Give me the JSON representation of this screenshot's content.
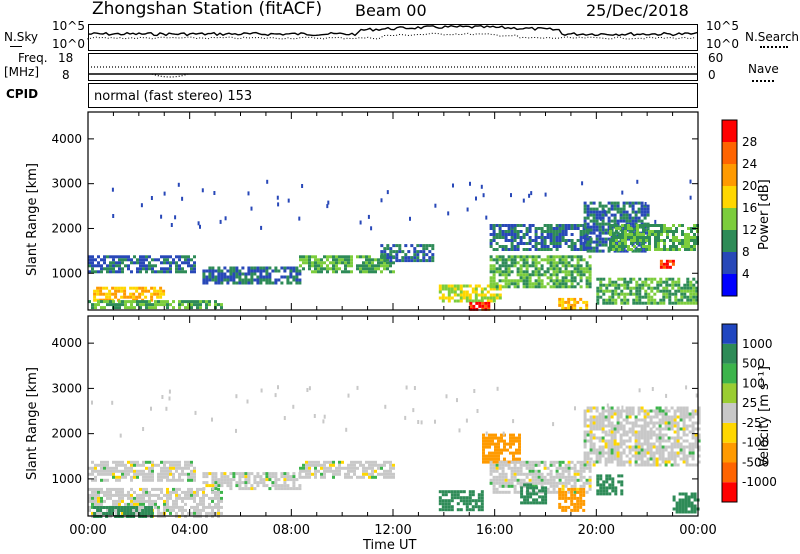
{
  "header": {
    "station": "Zhongshan Station (fitACF)",
    "beam": "Beam 00",
    "date": "25/Dec/2018"
  },
  "top_panels": {
    "nsky_label": "N.Sky",
    "nsky_ticks": [
      "10^5",
      "10^0"
    ],
    "nsearch_label": "N.Search",
    "freq_label_1": "Freq.",
    "freq_label_2": "[MHz]",
    "freq_ticks": [
      "18",
      "8"
    ],
    "nave_ticks": [
      "60",
      "0"
    ],
    "nave_label": "Nave",
    "cpid_label": "CPID",
    "cpid_text": "normal (fast stereo) 153"
  },
  "chart_data": [
    {
      "type": "heatmap",
      "title": "",
      "xlabel": "Time UT",
      "ylabel": "Slant Range [km]",
      "xticks": [
        "00:00",
        "04:00",
        "08:00",
        "12:00",
        "16:00",
        "20:00",
        "00:00"
      ],
      "xlim_hours": [
        0,
        24
      ],
      "yticks": [
        1000,
        2000,
        3000,
        4000
      ],
      "ylim": [
        180,
        4600
      ],
      "colorbar_label": "Power [dB]",
      "colorbar_ticks": [
        4,
        8,
        12,
        16,
        20,
        24,
        28
      ],
      "colorbar_colors": [
        "#0000ff",
        "#2848b8",
        "#2e8b57",
        "#7ccd3c",
        "#ffd700",
        "#ff9a00",
        "#ff6400",
        "#ff0000"
      ],
      "regions": [
        {
          "t0": 0.0,
          "t1": 4.2,
          "r0": 1000,
          "r1": 1400,
          "level": 8
        },
        {
          "t0": 0.2,
          "t1": 3.0,
          "r0": 380,
          "r1": 700,
          "level": 20
        },
        {
          "t0": 0.0,
          "t1": 5.3,
          "r0": 200,
          "r1": 400,
          "level": 12
        },
        {
          "t0": 4.5,
          "t1": 8.3,
          "r0": 780,
          "r1": 1150,
          "level": 8
        },
        {
          "t0": 8.3,
          "t1": 12.0,
          "r0": 1050,
          "r1": 1400,
          "level": 12
        },
        {
          "t0": 11.5,
          "t1": 13.6,
          "r0": 1250,
          "r1": 1650,
          "level": 8
        },
        {
          "t0": 13.8,
          "t1": 16.2,
          "r0": 350,
          "r1": 750,
          "level": 16
        },
        {
          "t0": 15.0,
          "t1": 15.8,
          "r0": 220,
          "r1": 360,
          "level": 28
        },
        {
          "t0": 15.8,
          "t1": 19.7,
          "r0": 700,
          "r1": 1400,
          "level": 12
        },
        {
          "t0": 15.8,
          "t1": 19.7,
          "r0": 1500,
          "r1": 2100,
          "level": 8
        },
        {
          "t0": 18.5,
          "t1": 19.6,
          "r0": 220,
          "r1": 450,
          "level": 20
        },
        {
          "t0": 19.5,
          "t1": 22.0,
          "r0": 1500,
          "r1": 2600,
          "level": 8
        },
        {
          "t0": 20.5,
          "t1": 24.0,
          "r0": 1500,
          "r1": 2100,
          "level": 12
        },
        {
          "t0": 20.0,
          "t1": 24.0,
          "r0": 300,
          "r1": 900,
          "level": 12
        },
        {
          "t0": 22.5,
          "t1": 23.0,
          "r0": 1150,
          "r1": 1300,
          "level": 28
        }
      ]
    },
    {
      "type": "heatmap",
      "title": "",
      "xlabel": "Time UT",
      "ylabel": "Slant Range [km]",
      "xticks": [
        "00:00",
        "04:00",
        "08:00",
        "12:00",
        "16:00",
        "20:00",
        "00:00"
      ],
      "xlim_hours": [
        0,
        24
      ],
      "yticks": [
        1000,
        2000,
        3000,
        4000
      ],
      "ylim": [
        180,
        4600
      ],
      "colorbar_label": "Velocity [m s⁻¹]",
      "colorbar_ticks": [
        "1000",
        "500",
        "100",
        "25",
        "-25",
        "-100",
        "-500",
        "-1000"
      ],
      "colorbar_colors": [
        "#2046c0",
        "#2e8b57",
        "#3cb44b",
        "#9acd32",
        "#c8c8c8",
        "#ffd700",
        "#ff9a00",
        "#ff6400",
        "#ff0000"
      ],
      "regions": [
        {
          "t0": 0.0,
          "t1": 4.2,
          "r0": 1000,
          "r1": 1400,
          "level": 0
        },
        {
          "t0": 0.0,
          "t1": 5.3,
          "r0": 200,
          "r1": 800,
          "level": 0
        },
        {
          "t0": 0.2,
          "t1": 2.5,
          "r0": 200,
          "r1": 400,
          "level": 150
        },
        {
          "t0": 4.5,
          "t1": 8.3,
          "r0": 780,
          "r1": 1150,
          "level": 0
        },
        {
          "t0": 8.3,
          "t1": 12.0,
          "r0": 1050,
          "r1": 1400,
          "level": 0
        },
        {
          "t0": 13.8,
          "t1": 15.5,
          "r0": 350,
          "r1": 750,
          "level": 200
        },
        {
          "t0": 15.5,
          "t1": 17.0,
          "r0": 1400,
          "r1": 2000,
          "level": -200
        },
        {
          "t0": 15.8,
          "t1": 19.7,
          "r0": 700,
          "r1": 1400,
          "level": 0
        },
        {
          "t0": 17.0,
          "t1": 18.0,
          "r0": 500,
          "r1": 900,
          "level": 200
        },
        {
          "t0": 18.5,
          "t1": 19.5,
          "r0": 300,
          "r1": 800,
          "level": -200
        },
        {
          "t0": 19.5,
          "t1": 24.0,
          "r0": 1300,
          "r1": 2600,
          "level": 0
        },
        {
          "t0": 20.0,
          "t1": 21.0,
          "r0": 700,
          "r1": 1100,
          "level": 200
        },
        {
          "t0": 23.0,
          "t1": 24.0,
          "r0": 300,
          "r1": 700,
          "level": 200
        }
      ]
    }
  ]
}
